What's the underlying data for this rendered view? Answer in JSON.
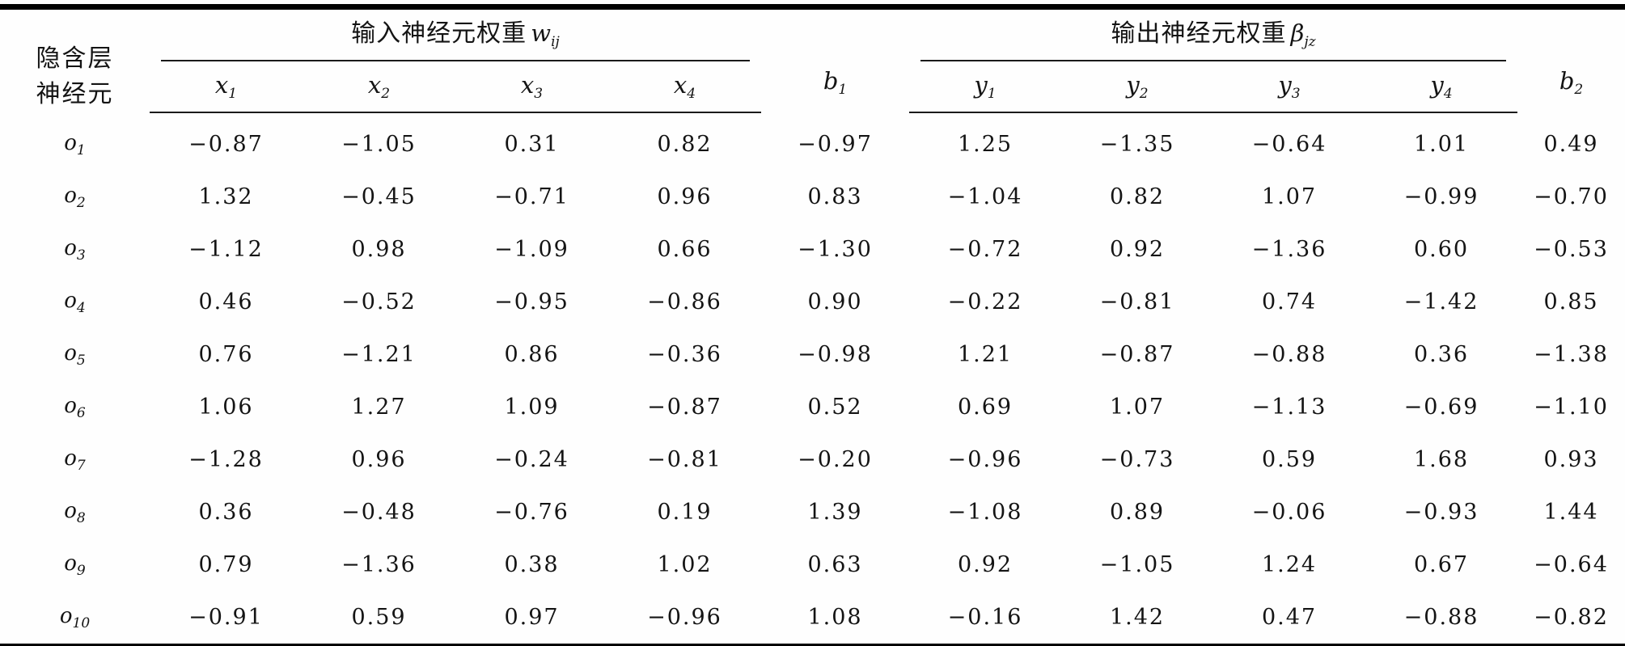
{
  "table": {
    "stub_header_line1": "隐含层",
    "stub_header_line2": "神经元",
    "input_group": {
      "title": "输入神经元权重",
      "var": "w",
      "var_sub": "ij"
    },
    "output_group": {
      "title": "输出神经元权重",
      "var": "β",
      "var_sub": "jz"
    },
    "b1": {
      "base": "b",
      "sub": "1"
    },
    "b2": {
      "base": "b",
      "sub": "2"
    },
    "input_cols": [
      {
        "base": "x",
        "sub": "1"
      },
      {
        "base": "x",
        "sub": "2"
      },
      {
        "base": "x",
        "sub": "3"
      },
      {
        "base": "x",
        "sub": "4"
      }
    ],
    "output_cols": [
      {
        "base": "y",
        "sub": "1"
      },
      {
        "base": "y",
        "sub": "2"
      },
      {
        "base": "y",
        "sub": "3"
      },
      {
        "base": "y",
        "sub": "4"
      }
    ],
    "rows": [
      {
        "label_base": "o",
        "label_sub": "1",
        "values": [
          "−0.87",
          "−1.05",
          "0.31",
          "0.82",
          "−0.97",
          "1.25",
          "−1.35",
          "−0.64",
          "1.01",
          "0.49"
        ]
      },
      {
        "label_base": "o",
        "label_sub": "2",
        "values": [
          "1.32",
          "−0.45",
          "−0.71",
          "0.96",
          "0.83",
          "−1.04",
          "0.82",
          "1.07",
          "−0.99",
          "−0.70"
        ]
      },
      {
        "label_base": "o",
        "label_sub": "3",
        "values": [
          "−1.12",
          "0.98",
          "−1.09",
          "0.66",
          "−1.30",
          "−0.72",
          "0.92",
          "−1.36",
          "0.60",
          "−0.53"
        ]
      },
      {
        "label_base": "o",
        "label_sub": "4",
        "values": [
          "0.46",
          "−0.52",
          "−0.95",
          "−0.86",
          "0.90",
          "−0.22",
          "−0.81",
          "0.74",
          "−1.42",
          "0.85"
        ]
      },
      {
        "label_base": "o",
        "label_sub": "5",
        "values": [
          "0.76",
          "−1.21",
          "0.86",
          "−0.36",
          "−0.98",
          "1.21",
          "−0.87",
          "−0.88",
          "0.36",
          "−1.38"
        ]
      },
      {
        "label_base": "o",
        "label_sub": "6",
        "values": [
          "1.06",
          "1.27",
          "1.09",
          "−0.87",
          "0.52",
          "0.69",
          "1.07",
          "−1.13",
          "−0.69",
          "−1.10"
        ]
      },
      {
        "label_base": "o",
        "label_sub": "7",
        "values": [
          "−1.28",
          "0.96",
          "−0.24",
          "−0.81",
          "−0.20",
          "−0.96",
          "−0.73",
          "0.59",
          "1.68",
          "0.93"
        ]
      },
      {
        "label_base": "o",
        "label_sub": "8",
        "values": [
          "0.36",
          "−0.48",
          "−0.76",
          "0.19",
          "1.39",
          "−1.08",
          "0.89",
          "−0.06",
          "−0.93",
          "1.44"
        ]
      },
      {
        "label_base": "o",
        "label_sub": "9",
        "values": [
          "0.79",
          "−1.36",
          "0.38",
          "1.02",
          "0.63",
          "0.92",
          "−1.05",
          "1.24",
          "0.67",
          "−0.64"
        ]
      },
      {
        "label_base": "o",
        "label_sub": "10",
        "values": [
          "−0.91",
          "0.59",
          "0.97",
          "−0.96",
          "1.08",
          "−0.16",
          "1.42",
          "0.47",
          "−0.88",
          "−0.82"
        ]
      }
    ]
  }
}
